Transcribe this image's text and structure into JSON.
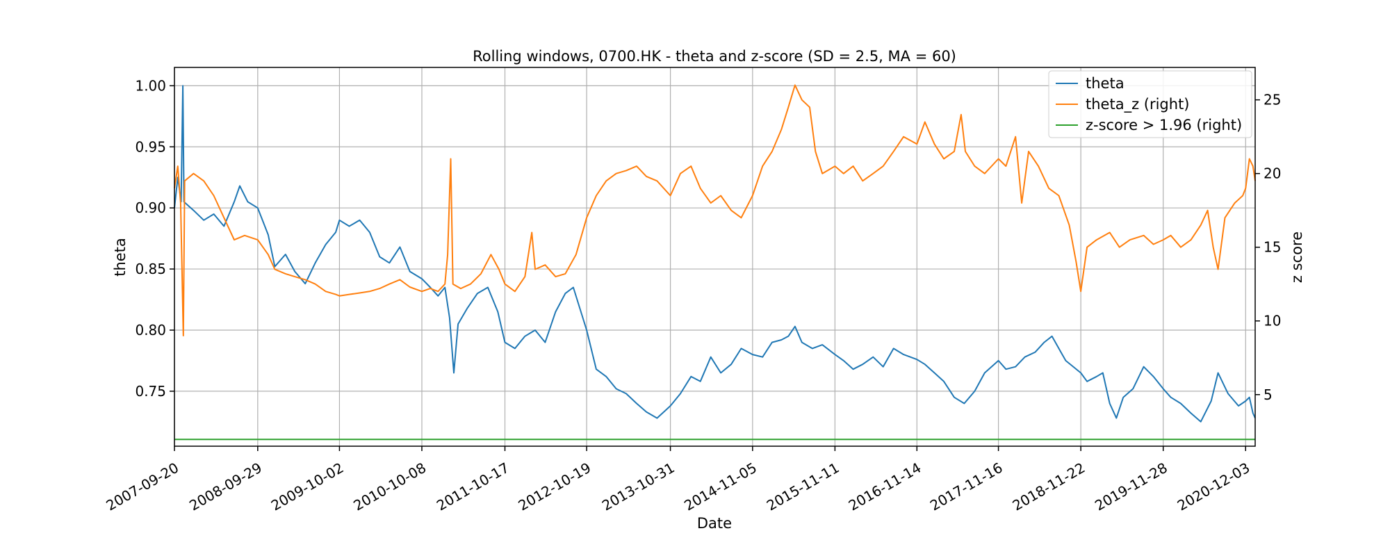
{
  "chart_data": {
    "type": "line",
    "title": "Rolling windows, 0700.HK - theta and z-score (SD = 2.5, MA = 60)",
    "xlabel": "Date",
    "ylabel": "theta",
    "y2label": "z score",
    "grid": true,
    "legend_position": "top-right",
    "x_ticks": [
      "2007-09-20",
      "2008-09-29",
      "2009-10-02",
      "2010-10-08",
      "2011-10-17",
      "2012-10-19",
      "2013-10-31",
      "2014-11-05",
      "2015-11-11",
      "2016-11-14",
      "2017-11-16",
      "2018-11-22",
      "2019-11-28",
      "2020-12-03"
    ],
    "x_range": [
      "2007-09-20",
      "2021-01-15"
    ],
    "y_ticks": [
      "0.75",
      "0.80",
      "0.85",
      "0.90",
      "0.95",
      "1.00"
    ],
    "y_range": [
      0.705,
      1.015
    ],
    "y2_ticks": [
      "5",
      "10",
      "15",
      "20",
      "25"
    ],
    "y2_range": [
      1.5,
      27.2
    ],
    "series": [
      {
        "name": "theta",
        "axis": "left",
        "color": "#1f77b4",
        "points": [
          [
            "2007-09-20",
            0.9
          ],
          [
            "2007-10-05",
            0.925
          ],
          [
            "2007-10-20",
            0.905
          ],
          [
            "2007-10-28",
            1.0
          ],
          [
            "2007-11-02",
            0.905
          ],
          [
            "2007-12-15",
            0.898
          ],
          [
            "2008-01-30",
            0.89
          ],
          [
            "2008-03-15",
            0.895
          ],
          [
            "2008-04-30",
            0.885
          ],
          [
            "2008-06-15",
            0.905
          ],
          [
            "2008-07-10",
            0.918
          ],
          [
            "2008-08-15",
            0.905
          ],
          [
            "2008-09-29",
            0.9
          ],
          [
            "2008-11-15",
            0.878
          ],
          [
            "2008-12-15",
            0.852
          ],
          [
            "2009-02-01",
            0.862
          ],
          [
            "2009-03-15",
            0.848
          ],
          [
            "2009-05-01",
            0.838
          ],
          [
            "2009-06-15",
            0.855
          ],
          [
            "2009-08-01",
            0.87
          ],
          [
            "2009-09-15",
            0.88
          ],
          [
            "2009-10-02",
            0.89
          ],
          [
            "2009-11-15",
            0.885
          ],
          [
            "2010-01-01",
            0.89
          ],
          [
            "2010-02-15",
            0.88
          ],
          [
            "2010-04-01",
            0.86
          ],
          [
            "2010-05-15",
            0.855
          ],
          [
            "2010-07-01",
            0.868
          ],
          [
            "2010-08-15",
            0.848
          ],
          [
            "2010-10-08",
            0.842
          ],
          [
            "2010-11-15",
            0.835
          ],
          [
            "2010-12-20",
            0.828
          ],
          [
            "2011-01-20",
            0.835
          ],
          [
            "2011-02-10",
            0.81
          ],
          [
            "2011-03-01",
            0.765
          ],
          [
            "2011-03-20",
            0.805
          ],
          [
            "2011-05-01",
            0.818
          ],
          [
            "2011-06-15",
            0.83
          ],
          [
            "2011-08-01",
            0.835
          ],
          [
            "2011-09-15",
            0.815
          ],
          [
            "2011-10-17",
            0.79
          ],
          [
            "2011-12-01",
            0.785
          ],
          [
            "2012-01-15",
            0.795
          ],
          [
            "2012-03-01",
            0.8
          ],
          [
            "2012-04-15",
            0.79
          ],
          [
            "2012-06-01",
            0.815
          ],
          [
            "2012-07-15",
            0.83
          ],
          [
            "2012-08-20",
            0.835
          ],
          [
            "2012-10-19",
            0.8
          ],
          [
            "2012-12-01",
            0.768
          ],
          [
            "2013-01-15",
            0.762
          ],
          [
            "2013-03-01",
            0.752
          ],
          [
            "2013-04-15",
            0.748
          ],
          [
            "2013-06-01",
            0.74
          ],
          [
            "2013-07-15",
            0.733
          ],
          [
            "2013-09-01",
            0.728
          ],
          [
            "2013-10-31",
            0.738
          ],
          [
            "2013-12-15",
            0.748
          ],
          [
            "2014-02-01",
            0.762
          ],
          [
            "2014-03-15",
            0.758
          ],
          [
            "2014-05-01",
            0.778
          ],
          [
            "2014-06-15",
            0.765
          ],
          [
            "2014-08-01",
            0.772
          ],
          [
            "2014-09-15",
            0.785
          ],
          [
            "2014-11-05",
            0.78
          ],
          [
            "2014-12-20",
            0.778
          ],
          [
            "2015-02-01",
            0.79
          ],
          [
            "2015-03-15",
            0.792
          ],
          [
            "2015-04-15",
            0.795
          ],
          [
            "2015-05-15",
            0.803
          ],
          [
            "2015-06-15",
            0.79
          ],
          [
            "2015-08-01",
            0.785
          ],
          [
            "2015-09-15",
            0.788
          ],
          [
            "2015-11-11",
            0.78
          ],
          [
            "2015-12-20",
            0.775
          ],
          [
            "2016-02-01",
            0.768
          ],
          [
            "2016-03-15",
            0.772
          ],
          [
            "2016-05-01",
            0.778
          ],
          [
            "2016-06-15",
            0.77
          ],
          [
            "2016-08-01",
            0.785
          ],
          [
            "2016-09-15",
            0.78
          ],
          [
            "2016-11-14",
            0.776
          ],
          [
            "2016-12-20",
            0.772
          ],
          [
            "2017-02-01",
            0.765
          ],
          [
            "2017-03-15",
            0.758
          ],
          [
            "2017-05-01",
            0.745
          ],
          [
            "2017-06-15",
            0.74
          ],
          [
            "2017-08-01",
            0.75
          ],
          [
            "2017-09-15",
            0.765
          ],
          [
            "2017-11-16",
            0.775
          ],
          [
            "2017-12-20",
            0.768
          ],
          [
            "2018-02-01",
            0.77
          ],
          [
            "2018-03-15",
            0.778
          ],
          [
            "2018-05-01",
            0.782
          ],
          [
            "2018-06-10",
            0.79
          ],
          [
            "2018-07-15",
            0.795
          ],
          [
            "2018-08-15",
            0.785
          ],
          [
            "2018-09-15",
            0.775
          ],
          [
            "2018-11-22",
            0.765
          ],
          [
            "2018-12-20",
            0.758
          ],
          [
            "2019-02-01",
            0.762
          ],
          [
            "2019-03-01",
            0.765
          ],
          [
            "2019-04-01",
            0.74
          ],
          [
            "2019-05-01",
            0.728
          ],
          [
            "2019-06-01",
            0.745
          ],
          [
            "2019-07-15",
            0.752
          ],
          [
            "2019-09-01",
            0.77
          ],
          [
            "2019-10-15",
            0.762
          ],
          [
            "2019-11-28",
            0.752
          ],
          [
            "2020-01-01",
            0.745
          ],
          [
            "2020-02-15",
            0.74
          ],
          [
            "2020-04-01",
            0.732
          ],
          [
            "2020-05-15",
            0.725
          ],
          [
            "2020-07-01",
            0.742
          ],
          [
            "2020-08-01",
            0.765
          ],
          [
            "2020-09-15",
            0.748
          ],
          [
            "2020-11-01",
            0.738
          ],
          [
            "2020-12-03",
            0.742
          ],
          [
            "2020-12-20",
            0.745
          ],
          [
            "2021-01-05",
            0.732
          ],
          [
            "2021-01-15",
            0.728
          ]
        ]
      },
      {
        "name": "theta_z (right)",
        "axis": "right",
        "color": "#ff7f0e",
        "points": [
          [
            "2007-09-20",
            19.0
          ],
          [
            "2007-10-05",
            20.5
          ],
          [
            "2007-10-18",
            18.0
          ],
          [
            "2007-10-30",
            9.0
          ],
          [
            "2007-11-05",
            19.5
          ],
          [
            "2007-12-15",
            20.0
          ],
          [
            "2008-01-30",
            19.5
          ],
          [
            "2008-03-15",
            18.5
          ],
          [
            "2008-04-30",
            17.0
          ],
          [
            "2008-06-15",
            15.5
          ],
          [
            "2008-08-01",
            15.8
          ],
          [
            "2008-09-29",
            15.5
          ],
          [
            "2008-11-15",
            14.5
          ],
          [
            "2008-12-15",
            13.5
          ],
          [
            "2009-02-01",
            13.2
          ],
          [
            "2009-03-15",
            13.0
          ],
          [
            "2009-05-01",
            12.8
          ],
          [
            "2009-06-15",
            12.5
          ],
          [
            "2009-08-01",
            12.0
          ],
          [
            "2009-09-15",
            11.8
          ],
          [
            "2009-10-02",
            11.7
          ],
          [
            "2009-11-15",
            11.8
          ],
          [
            "2010-01-01",
            11.9
          ],
          [
            "2010-02-15",
            12.0
          ],
          [
            "2010-04-01",
            12.2
          ],
          [
            "2010-05-15",
            12.5
          ],
          [
            "2010-07-01",
            12.8
          ],
          [
            "2010-08-15",
            12.3
          ],
          [
            "2010-10-08",
            12.0
          ],
          [
            "2010-11-15",
            12.2
          ],
          [
            "2010-12-20",
            12.0
          ],
          [
            "2011-01-20",
            12.5
          ],
          [
            "2011-02-01",
            14.5
          ],
          [
            "2011-02-15",
            21.0
          ],
          [
            "2011-02-25",
            12.5
          ],
          [
            "2011-04-01",
            12.2
          ],
          [
            "2011-05-15",
            12.5
          ],
          [
            "2011-07-01",
            13.2
          ],
          [
            "2011-08-15",
            14.5
          ],
          [
            "2011-09-20",
            13.5
          ],
          [
            "2011-10-17",
            12.5
          ],
          [
            "2011-12-01",
            12.0
          ],
          [
            "2012-01-15",
            13.0
          ],
          [
            "2012-02-15",
            16.0
          ],
          [
            "2012-03-01",
            13.5
          ],
          [
            "2012-04-15",
            13.8
          ],
          [
            "2012-06-01",
            13.0
          ],
          [
            "2012-07-15",
            13.2
          ],
          [
            "2012-09-01",
            14.5
          ],
          [
            "2012-10-19",
            17.0
          ],
          [
            "2012-12-01",
            18.5
          ],
          [
            "2013-01-15",
            19.5
          ],
          [
            "2013-03-01",
            20.0
          ],
          [
            "2013-04-15",
            20.2
          ],
          [
            "2013-06-01",
            20.5
          ],
          [
            "2013-07-15",
            19.8
          ],
          [
            "2013-09-01",
            19.5
          ],
          [
            "2013-10-31",
            18.5
          ],
          [
            "2013-12-15",
            20.0
          ],
          [
            "2014-02-01",
            20.5
          ],
          [
            "2014-03-15",
            19.0
          ],
          [
            "2014-05-01",
            18.0
          ],
          [
            "2014-06-15",
            18.5
          ],
          [
            "2014-08-01",
            17.5
          ],
          [
            "2014-09-15",
            17.0
          ],
          [
            "2014-11-05",
            18.5
          ],
          [
            "2014-12-20",
            20.5
          ],
          [
            "2015-02-01",
            21.5
          ],
          [
            "2015-03-15",
            23.0
          ],
          [
            "2015-04-15",
            24.5
          ],
          [
            "2015-05-15",
            26.0
          ],
          [
            "2015-06-15",
            25.0
          ],
          [
            "2015-07-20",
            24.5
          ],
          [
            "2015-08-15",
            21.5
          ],
          [
            "2015-09-15",
            20.0
          ],
          [
            "2015-11-11",
            20.5
          ],
          [
            "2015-12-20",
            20.0
          ],
          [
            "2016-02-01",
            20.5
          ],
          [
            "2016-03-15",
            19.5
          ],
          [
            "2016-05-01",
            20.0
          ],
          [
            "2016-06-15",
            20.5
          ],
          [
            "2016-08-01",
            21.5
          ],
          [
            "2016-09-15",
            22.5
          ],
          [
            "2016-11-14",
            22.0
          ],
          [
            "2016-12-20",
            23.5
          ],
          [
            "2017-02-01",
            22.0
          ],
          [
            "2017-03-15",
            21.0
          ],
          [
            "2017-05-01",
            21.5
          ],
          [
            "2017-06-01",
            24.0
          ],
          [
            "2017-06-20",
            21.5
          ],
          [
            "2017-08-01",
            20.5
          ],
          [
            "2017-09-15",
            20.0
          ],
          [
            "2017-11-16",
            21.0
          ],
          [
            "2017-12-20",
            20.5
          ],
          [
            "2018-02-01",
            22.5
          ],
          [
            "2018-03-01",
            18.0
          ],
          [
            "2018-04-01",
            21.5
          ],
          [
            "2018-05-15",
            20.5
          ],
          [
            "2018-07-01",
            19.0
          ],
          [
            "2018-08-15",
            18.5
          ],
          [
            "2018-10-01",
            16.5
          ],
          [
            "2018-11-01",
            14.0
          ],
          [
            "2018-11-22",
            12.0
          ],
          [
            "2018-12-20",
            15.0
          ],
          [
            "2019-02-01",
            15.5
          ],
          [
            "2019-04-01",
            16.0
          ],
          [
            "2019-05-15",
            15.0
          ],
          [
            "2019-07-01",
            15.5
          ],
          [
            "2019-09-01",
            15.8
          ],
          [
            "2019-10-15",
            15.2
          ],
          [
            "2019-11-28",
            15.5
          ],
          [
            "2020-01-01",
            15.8
          ],
          [
            "2020-02-15",
            15.0
          ],
          [
            "2020-04-01",
            15.5
          ],
          [
            "2020-05-15",
            16.5
          ],
          [
            "2020-06-15",
            17.5
          ],
          [
            "2020-07-10",
            15.0
          ],
          [
            "2020-08-01",
            13.5
          ],
          [
            "2020-09-01",
            17.0
          ],
          [
            "2020-10-15",
            18.0
          ],
          [
            "2020-11-20",
            18.5
          ],
          [
            "2020-12-03",
            19.0
          ],
          [
            "2020-12-20",
            21.0
          ],
          [
            "2021-01-05",
            20.5
          ],
          [
            "2021-01-15",
            19.5
          ]
        ]
      },
      {
        "name": "z-score > 1.96 (right)",
        "axis": "right",
        "color": "#2ca02c",
        "points": [
          [
            "2007-09-20",
            1.96
          ],
          [
            "2021-01-15",
            1.96
          ]
        ]
      }
    ]
  }
}
